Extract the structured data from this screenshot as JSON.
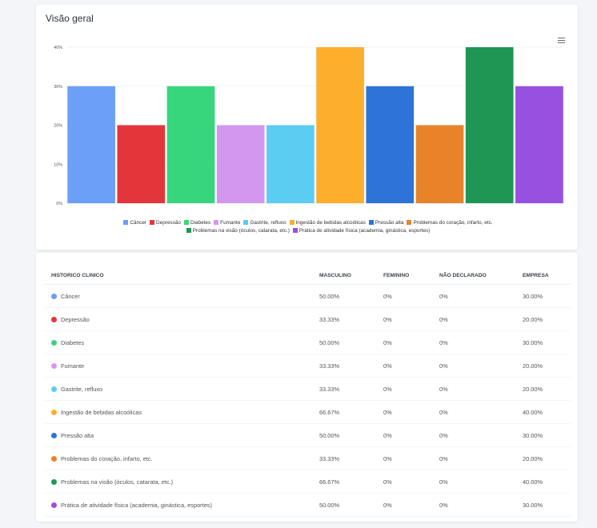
{
  "chart_card": {
    "title": "Visão geral",
    "menu_icon": "hamburger-menu-icon"
  },
  "chart_data": {
    "type": "bar",
    "categories": [
      "Câncer",
      "Depressão",
      "Diabetes",
      "Fumante",
      "Gastrite, refluxo",
      "Ingestão de bebidas alcoólicas",
      "Pressão alta",
      "Problemas do coração, infarto, etc.",
      "Problemas na visão (óculos, catarata, etc.)",
      "Prática de atividade física (academia, ginástica, esportes)"
    ],
    "values": [
      30,
      20,
      30,
      20,
      20,
      40,
      30,
      20,
      40,
      30
    ],
    "colors": [
      "#6b9ff8",
      "#e3353a",
      "#37d67d",
      "#d497f0",
      "#5bcdf3",
      "#fdae2d",
      "#2d73d8",
      "#e8832a",
      "#1f9654",
      "#9750e0"
    ],
    "ylim": [
      0,
      40
    ],
    "yticks": [
      0,
      10,
      20,
      30,
      40
    ],
    "ytick_labels": [
      "0%",
      "10%",
      "20%",
      "30%",
      "40%"
    ],
    "grid": true,
    "legend_position": "bottom"
  },
  "table": {
    "headers": [
      "HISTORICO CLINICO",
      "MASCULINO",
      "FEMININO",
      "NÃO DECLARADO",
      "EMPRESA"
    ],
    "rows": [
      {
        "name": "Câncer",
        "color": "#6b9ff8",
        "masculino": "50.00%",
        "feminino": "0%",
        "nao_declarado": "0%",
        "empresa": "30.00%"
      },
      {
        "name": "Depressão",
        "color": "#e3353a",
        "masculino": "33.33%",
        "feminino": "0%",
        "nao_declarado": "0%",
        "empresa": "20.00%"
      },
      {
        "name": "Diabetes",
        "color": "#37d67d",
        "masculino": "50.00%",
        "feminino": "0%",
        "nao_declarado": "0%",
        "empresa": "30.00%"
      },
      {
        "name": "Fumante",
        "color": "#d497f0",
        "masculino": "33.33%",
        "feminino": "0%",
        "nao_declarado": "0%",
        "empresa": "20.00%"
      },
      {
        "name": "Gastrite, refluxo",
        "color": "#5bcdf3",
        "masculino": "33.33%",
        "feminino": "0%",
        "nao_declarado": "0%",
        "empresa": "20.00%"
      },
      {
        "name": "Ingestão de bebidas alcoólicas",
        "color": "#fdae2d",
        "masculino": "66.67%",
        "feminino": "0%",
        "nao_declarado": "0%",
        "empresa": "40.00%"
      },
      {
        "name": "Pressão alta",
        "color": "#2d73d8",
        "masculino": "50.00%",
        "feminino": "0%",
        "nao_declarado": "0%",
        "empresa": "30.00%"
      },
      {
        "name": "Problemas do coração, infarto, etc.",
        "color": "#e8832a",
        "masculino": "33.33%",
        "feminino": "0%",
        "nao_declarado": "0%",
        "empresa": "20.00%"
      },
      {
        "name": "Problemas na visão (óculos, catarata, etc.)",
        "color": "#1f9654",
        "masculino": "66.67%",
        "feminino": "0%",
        "nao_declarado": "0%",
        "empresa": "40.00%"
      },
      {
        "name": "Prática de atividade física (academia, ginástica, esportes)",
        "color": "#9750e0",
        "masculino": "50.00%",
        "feminino": "0%",
        "nao_declarado": "0%",
        "empresa": "30.00%"
      }
    ]
  }
}
